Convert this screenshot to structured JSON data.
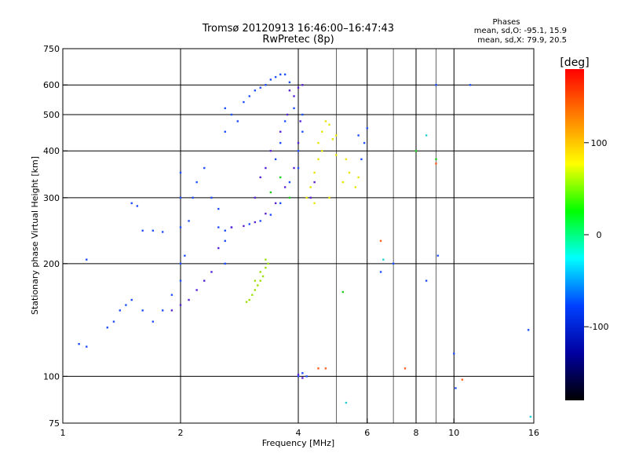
{
  "chart_data": {
    "type": "scatter",
    "title": "Tromsø 20120913 16:46:00–16:47:43",
    "subtitle": "RwPretec (8p)",
    "stats": {
      "heading": "Phases",
      "line_o": "mean, sd,O: -95.1, 15.9",
      "line_x": "mean, sd,X:  79.9, 20.5"
    },
    "xlabel": "Frequency [MHz]",
    "ylabel": "Stationary phase Virtual Height [km]",
    "x_scale": "log",
    "y_scale": "log",
    "xlim": [
      1,
      16
    ],
    "ylim": [
      75,
      750
    ],
    "x_ticks": [
      1,
      2,
      4,
      6,
      8,
      10,
      16
    ],
    "x_tick_labels": [
      "1",
      "2",
      "4",
      "6",
      "8",
      "10",
      "16"
    ],
    "x_grid": [
      2,
      4,
      6,
      8,
      10
    ],
    "x_minor_grid": [
      5,
      7,
      9
    ],
    "y_ticks": [
      75,
      100,
      200,
      300,
      400,
      500,
      600,
      750
    ],
    "y_tick_labels": [
      "75",
      "100",
      "200",
      "300",
      "400",
      "500",
      "600",
      "750"
    ],
    "grid": true,
    "colorbar": {
      "label": "[deg]",
      "min": -180,
      "max": 180,
      "ticks": [
        100,
        0,
        -100
      ],
      "tick_labels": [
        "100",
        "0",
        "-100"
      ],
      "colors": [
        "#ff0000",
        "#ff8000",
        "#ffff00",
        "#00ff00",
        "#00ffff",
        "#0040ff",
        "#0000a0",
        "#000000"
      ]
    },
    "series": [
      {
        "phase": -100,
        "color": "#1f4fff",
        "points": [
          [
            1.1,
            122
          ],
          [
            1.15,
            205
          ],
          [
            1.3,
            135
          ],
          [
            1.35,
            140
          ],
          [
            1.4,
            150
          ],
          [
            1.45,
            155
          ],
          [
            1.5,
            160
          ],
          [
            1.6,
            150
          ],
          [
            1.5,
            290
          ],
          [
            1.55,
            285
          ],
          [
            1.6,
            245
          ],
          [
            1.7,
            245
          ],
          [
            1.8,
            243
          ],
          [
            1.7,
            140
          ],
          [
            1.8,
            150
          ],
          [
            1.9,
            165
          ],
          [
            2.0,
            180
          ],
          [
            2.0,
            200
          ],
          [
            2.0,
            250
          ],
          [
            2.0,
            300
          ],
          [
            2.0,
            350
          ],
          [
            2.05,
            210
          ],
          [
            2.1,
            260
          ],
          [
            2.15,
            300
          ],
          [
            2.2,
            330
          ],
          [
            2.3,
            360
          ],
          [
            2.4,
            300
          ],
          [
            2.5,
            280
          ],
          [
            2.5,
            250
          ],
          [
            2.6,
            245
          ],
          [
            2.7,
            250
          ],
          [
            2.6,
            230
          ],
          [
            2.6,
            200
          ],
          [
            2.6,
            450
          ],
          [
            2.7,
            500
          ],
          [
            2.8,
            480
          ],
          [
            2.6,
            520
          ],
          [
            2.9,
            540
          ],
          [
            3.0,
            560
          ],
          [
            3.1,
            580
          ],
          [
            3.2,
            590
          ],
          [
            3.3,
            600
          ],
          [
            3.4,
            620
          ],
          [
            3.5,
            630
          ],
          [
            3.6,
            640
          ],
          [
            3.7,
            640
          ],
          [
            3.8,
            610
          ],
          [
            3.0,
            255
          ],
          [
            3.2,
            260
          ],
          [
            3.4,
            270
          ],
          [
            3.6,
            290
          ],
          [
            3.8,
            330
          ],
          [
            4.0,
            360
          ],
          [
            4.0,
            400
          ],
          [
            4.1,
            450
          ],
          [
            4.1,
            500
          ],
          [
            3.9,
            520
          ],
          [
            3.7,
            480
          ],
          [
            3.6,
            420
          ],
          [
            3.5,
            380
          ],
          [
            5.7,
            440
          ],
          [
            5.9,
            420
          ],
          [
            6.0,
            460
          ],
          [
            5.8,
            380
          ],
          [
            6.5,
            190
          ],
          [
            7.0,
            200
          ],
          [
            8.5,
            180
          ],
          [
            9.0,
            600
          ],
          [
            9.1,
            210
          ],
          [
            10.0,
            115
          ],
          [
            10.1,
            93
          ],
          [
            11.0,
            600
          ],
          [
            15.5,
            133
          ],
          [
            4.0,
            100
          ],
          [
            4.1,
            102
          ],
          [
            4.2,
            100
          ],
          [
            1.15,
            120
          ]
        ]
      },
      {
        "phase": -120,
        "color": "#5a22d8",
        "points": [
          [
            1.9,
            150
          ],
          [
            2.0,
            155
          ],
          [
            2.1,
            160
          ],
          [
            2.2,
            170
          ],
          [
            2.3,
            180
          ],
          [
            2.4,
            190
          ],
          [
            2.5,
            220
          ],
          [
            2.7,
            250
          ],
          [
            2.9,
            252
          ],
          [
            3.1,
            258
          ],
          [
            3.3,
            272
          ],
          [
            3.5,
            290
          ],
          [
            3.7,
            320
          ],
          [
            3.9,
            360
          ],
          [
            4.0,
            420
          ],
          [
            4.05,
            480
          ],
          [
            3.9,
            560
          ],
          [
            4.0,
            590
          ],
          [
            4.1,
            600
          ],
          [
            3.8,
            580
          ],
          [
            3.75,
            500
          ],
          [
            3.6,
            450
          ],
          [
            3.4,
            400
          ],
          [
            3.3,
            360
          ],
          [
            3.2,
            340
          ],
          [
            3.1,
            300
          ],
          [
            4.3,
            300
          ],
          [
            4.4,
            330
          ],
          [
            4.0,
            101
          ],
          [
            4.1,
            99
          ]
        ]
      },
      {
        "phase": 100,
        "color": "#e6e600",
        "points": [
          [
            4.2,
            300
          ],
          [
            4.3,
            320
          ],
          [
            4.4,
            350
          ],
          [
            4.5,
            380
          ],
          [
            4.6,
            400
          ],
          [
            4.5,
            420
          ],
          [
            4.6,
            450
          ],
          [
            4.7,
            480
          ],
          [
            4.8,
            470
          ],
          [
            4.9,
            430
          ],
          [
            5.0,
            390
          ],
          [
            4.4,
            290
          ],
          [
            4.8,
            300
          ],
          [
            5.2,
            330
          ],
          [
            5.4,
            350
          ],
          [
            5.6,
            320
          ],
          [
            5.7,
            340
          ],
          [
            5.3,
            380
          ],
          [
            5.0,
            440
          ]
        ]
      },
      {
        "phase": 80,
        "color": "#9ee000",
        "points": [
          [
            3.0,
            160
          ],
          [
            3.05,
            165
          ],
          [
            3.1,
            170
          ],
          [
            3.15,
            175
          ],
          [
            3.2,
            180
          ],
          [
            3.25,
            185
          ],
          [
            3.3,
            195
          ],
          [
            3.3,
            205
          ],
          [
            3.2,
            190
          ],
          [
            3.1,
            180
          ],
          [
            2.95,
            158
          ],
          [
            3.35,
            200
          ]
        ]
      },
      {
        "phase": 60,
        "color": "#20d020",
        "points": [
          [
            3.4,
            310
          ],
          [
            3.6,
            340
          ],
          [
            3.8,
            300
          ],
          [
            5.2,
            168
          ],
          [
            8.0,
            400
          ],
          [
            9.0,
            380
          ]
        ]
      },
      {
        "phase": 150,
        "color": "#ff6020",
        "points": [
          [
            4.5,
            105
          ],
          [
            4.7,
            105
          ],
          [
            7.5,
            105
          ],
          [
            9.0,
            370
          ],
          [
            10.5,
            98
          ],
          [
            6.5,
            230
          ]
        ]
      },
      {
        "phase": 20,
        "color": "#20d0d0",
        "points": [
          [
            15.7,
            78
          ],
          [
            6.6,
            205
          ],
          [
            8.5,
            440
          ],
          [
            5.3,
            85
          ]
        ]
      }
    ]
  }
}
